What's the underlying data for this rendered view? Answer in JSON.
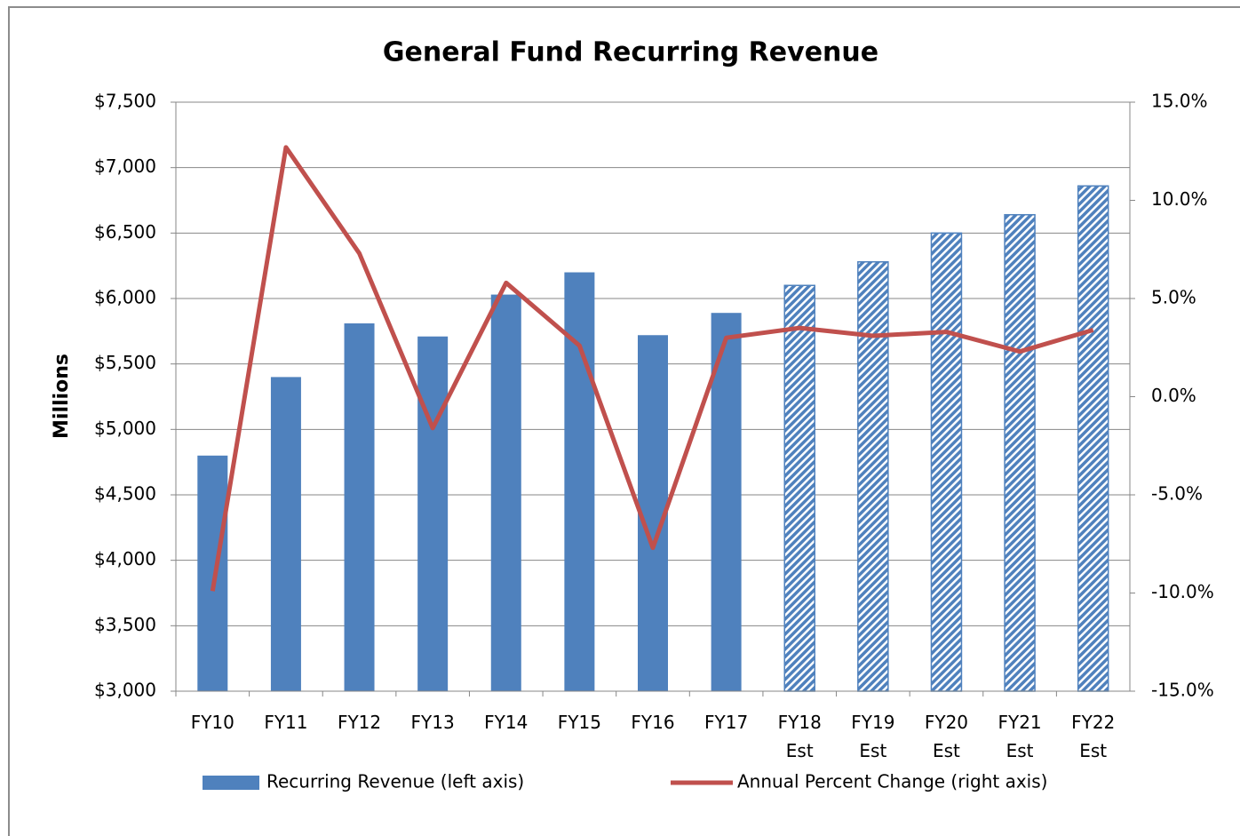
{
  "chart_data": {
    "type": "bar-line",
    "title": "General Fund Recurring Revenue",
    "y_label": "Millions",
    "categories": [
      "FY10",
      "FY11",
      "FY12",
      "FY13",
      "FY14",
      "FY15",
      "FY16",
      "FY17",
      "FY18 Est",
      "FY19 Est",
      "FY20 Est",
      "FY21 Est",
      "FY22 Est"
    ],
    "series": [
      {
        "name": "Recurring Revenue (left axis)",
        "type": "bar",
        "color": "#4f81bd",
        "axis": "y",
        "values": [
          4800,
          5400,
          5810,
          5710,
          6030,
          6200,
          5720,
          5890,
          6100,
          6280,
          6500,
          6640,
          6860
        ],
        "hatched": [
          false,
          false,
          false,
          false,
          false,
          false,
          false,
          false,
          true,
          true,
          true,
          true,
          true
        ]
      },
      {
        "name": "Annual Percent Change (right axis)",
        "type": "line",
        "color": "#c0504d",
        "axis": "y2",
        "values": [
          -9.9,
          12.7,
          7.3,
          -1.6,
          5.8,
          2.6,
          -7.7,
          3.0,
          3.5,
          3.1,
          3.3,
          2.3,
          3.4
        ]
      }
    ],
    "ylim": [
      3000,
      7500
    ],
    "yticks": [
      {
        "value": 3000,
        "label": "$3,000"
      },
      {
        "value": 3500,
        "label": "$3,500"
      },
      {
        "value": 4000,
        "label": "$4,000"
      },
      {
        "value": 4500,
        "label": "$4,500"
      },
      {
        "value": 5000,
        "label": "$5,000"
      },
      {
        "value": 5500,
        "label": "$5,500"
      },
      {
        "value": 6000,
        "label": "$6,000"
      },
      {
        "value": 6500,
        "label": "$6,500"
      },
      {
        "value": 7000,
        "label": "$7,000"
      },
      {
        "value": 7500,
        "label": "$7,500"
      }
    ],
    "y2lim": [
      -15,
      15
    ],
    "y2ticks": [
      {
        "value": -15,
        "label": "-15.0%"
      },
      {
        "value": -10,
        "label": "-10.0%"
      },
      {
        "value": -5,
        "label": "-5.0%"
      },
      {
        "value": 0,
        "label": "0.0%"
      },
      {
        "value": 5,
        "label": "5.0%"
      },
      {
        "value": 10,
        "label": "10.0%"
      },
      {
        "value": 15,
        "label": "15.0%"
      }
    ],
    "grid": true,
    "legend": "bottom"
  }
}
